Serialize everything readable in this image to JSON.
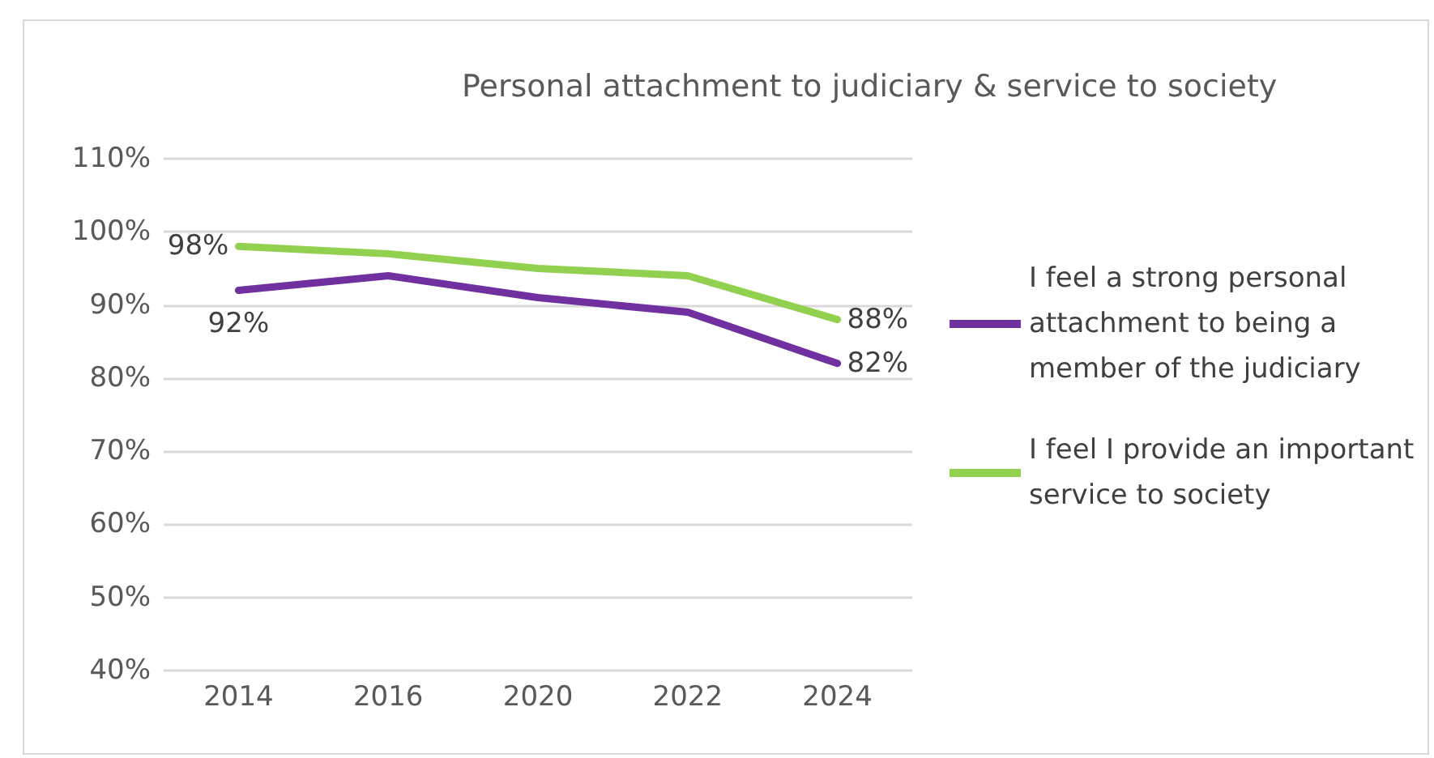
{
  "chart_data": {
    "type": "line",
    "title": "Personal attachment to judiciary & service to society",
    "categories": [
      "2014",
      "2016",
      "2020",
      "2022",
      "2024"
    ],
    "series": [
      {
        "name": "I feel a strong personal attachment to being a member of the judiciary",
        "color": "#7030a0",
        "values": [
          92,
          94,
          91,
          89,
          82
        ],
        "value_labels": [
          "92%",
          null,
          null,
          null,
          "82%"
        ]
      },
      {
        "name": "I feel I provide an important service to society",
        "color": "#92d050",
        "values": [
          98,
          97,
          95,
          94,
          88
        ],
        "value_labels": [
          "98%",
          null,
          null,
          null,
          "88%"
        ]
      }
    ],
    "ylim": [
      40,
      110
    ],
    "yticks": [
      {
        "value": 40,
        "label": "40%"
      },
      {
        "value": 50,
        "label": "50%"
      },
      {
        "value": 60,
        "label": "60%"
      },
      {
        "value": 70,
        "label": "70%"
      },
      {
        "value": 80,
        "label": "80%"
      },
      {
        "value": 90,
        "label": "90%"
      },
      {
        "value": 100,
        "label": "100%"
      },
      {
        "value": 110,
        "label": "110%"
      }
    ],
    "grid": "y",
    "legend": "right",
    "marker": "none",
    "line_style": "solid"
  }
}
